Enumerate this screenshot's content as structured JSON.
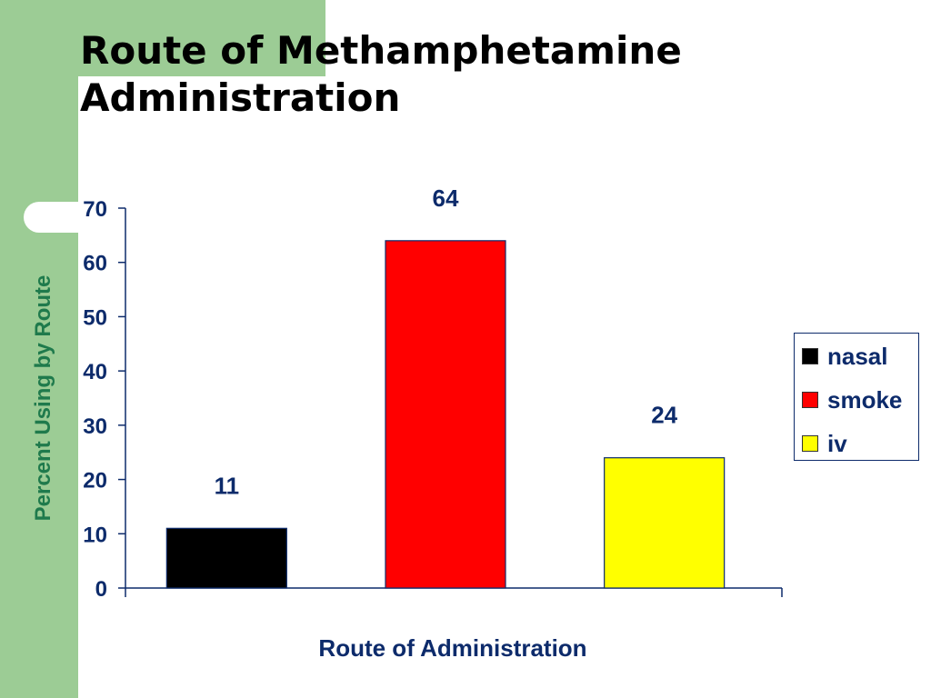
{
  "slide": {
    "title": "Route of Methamphetamine Administration"
  },
  "chart_data": {
    "type": "bar",
    "title": "Route of Methamphetamine Administration",
    "xlabel": "Route of Administration",
    "ylabel": "Percent Using by Route",
    "ylim": [
      0,
      70
    ],
    "yticks": [
      0,
      10,
      20,
      30,
      40,
      50,
      60,
      70
    ],
    "grid": false,
    "legend_placement": "right",
    "categories": [
      "nasal",
      "smoke",
      "iv"
    ],
    "values": [
      11,
      64,
      24
    ],
    "colors": [
      "#000000",
      "#ff0000",
      "#ffff00"
    ],
    "data_labels": [
      "11",
      "64",
      "24"
    ]
  },
  "theme": {
    "accent_green": "#9ccc95",
    "label_navy": "#0d2b6b",
    "ylabel_green": "#1f7a4c"
  }
}
